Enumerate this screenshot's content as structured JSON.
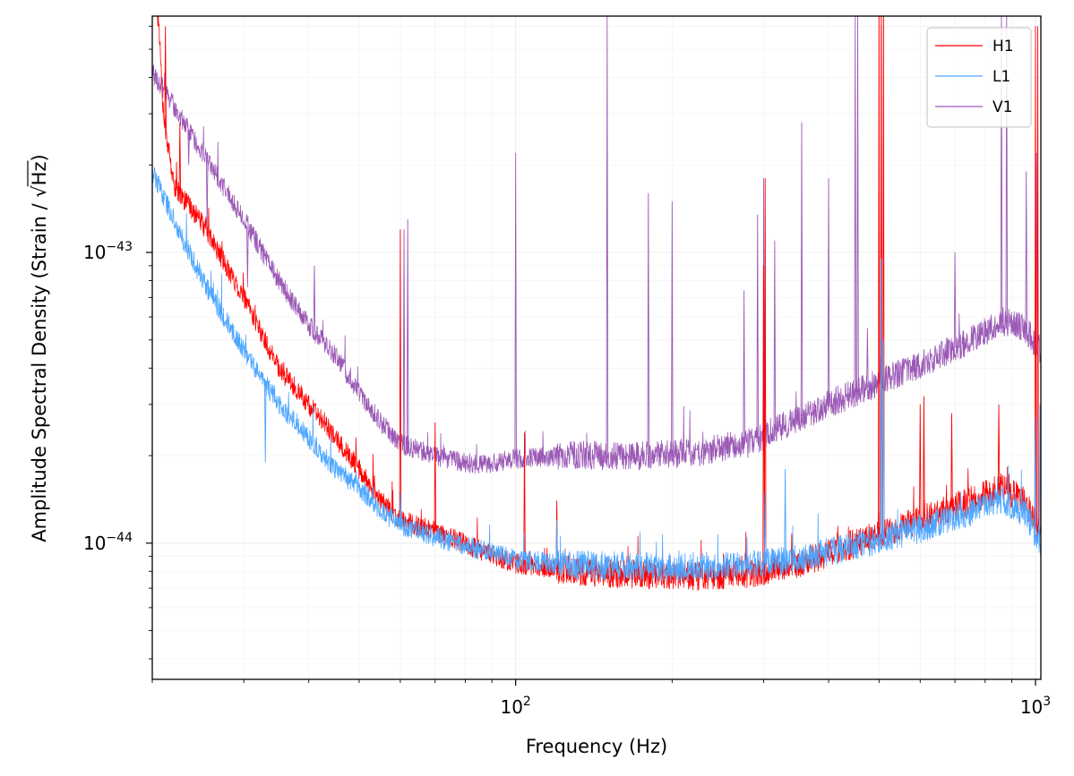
{
  "chart_data": {
    "type": "line",
    "xlabel": "Frequency (Hz)",
    "ylabel_prefix": "Amplitude Spectral Density (Strain / ",
    "ylabel_sqrt": "√",
    "ylabel_radicand": "Hz",
    "ylabel_suffix": ")",
    "x_scale": "log",
    "y_scale": "log",
    "xlim": [
      20,
      1024
    ],
    "ylim": [
      3.4e-45,
      6.5e-43
    ],
    "grid": true,
    "legend_position": "top-right",
    "x_ticks": [
      {
        "value": 100,
        "base": "10",
        "exp": "2"
      },
      {
        "value": 1000,
        "base": "10",
        "exp": "3"
      }
    ],
    "y_ticks": [
      {
        "value": 1e-44,
        "base": "10",
        "exp": "−44"
      },
      {
        "value": 1e-43,
        "base": "10",
        "exp": "−43"
      }
    ],
    "series": [
      {
        "name": "H1",
        "color": "#ff0000",
        "baseline": [
          [
            20,
            1.8e-42
          ],
          [
            21,
            3e-43
          ],
          [
            22,
            1.7e-43
          ],
          [
            25,
            1.25e-43
          ],
          [
            30,
            7e-44
          ],
          [
            35,
            4e-44
          ],
          [
            40,
            3e-44
          ],
          [
            45,
            2.3e-44
          ],
          [
            50,
            1.8e-44
          ],
          [
            55,
            1.4e-44
          ],
          [
            60,
            1.2e-44
          ],
          [
            70,
            1.1e-44
          ],
          [
            85,
            9.5e-45
          ],
          [
            100,
            8.5e-45
          ],
          [
            130,
            8e-45
          ],
          [
            170,
            7.8e-45
          ],
          [
            220,
            7.7e-45
          ],
          [
            280,
            7.8e-45
          ],
          [
            350,
            8.5e-45
          ],
          [
            450,
            1e-44
          ],
          [
            600,
            1.2e-44
          ],
          [
            750,
            1.4e-44
          ],
          [
            860,
            1.55e-44
          ],
          [
            950,
            1.4e-44
          ],
          [
            1024,
            1.1e-44
          ]
        ],
        "peaks": [
          [
            20.5,
            6e-43
          ],
          [
            21.2,
            6e-43
          ],
          [
            22.6,
            2.8e-43
          ],
          [
            60,
            1.2e-43
          ],
          [
            70,
            2.6e-44
          ],
          [
            104,
            2.4e-44
          ],
          [
            120,
            1.4e-44
          ],
          [
            300,
            9e-44
          ],
          [
            302,
            1.8e-43
          ],
          [
            500,
            9e-43
          ],
          [
            505,
            9e-43
          ],
          [
            510,
            9e-43
          ],
          [
            600,
            3e-44
          ],
          [
            610,
            3.2e-44
          ],
          [
            690,
            2.8e-44
          ],
          [
            850,
            3e-44
          ],
          [
            1000,
            6e-43
          ],
          [
            1010,
            6e-43
          ]
        ]
      },
      {
        "name": "L1",
        "color": "#4da6ff",
        "baseline": [
          [
            20,
            1.9e-43
          ],
          [
            22,
            1.3e-43
          ],
          [
            25,
            8e-44
          ],
          [
            30,
            4.6e-44
          ],
          [
            35,
            3e-44
          ],
          [
            40,
            2.3e-44
          ],
          [
            45,
            1.8e-44
          ],
          [
            50,
            1.55e-44
          ],
          [
            55,
            1.3e-44
          ],
          [
            60,
            1.15e-44
          ],
          [
            70,
            1.05e-44
          ],
          [
            85,
            9.5e-45
          ],
          [
            100,
            8.8e-45
          ],
          [
            130,
            8.4e-45
          ],
          [
            170,
            8.3e-45
          ],
          [
            220,
            8.3e-45
          ],
          [
            280,
            8.4e-45
          ],
          [
            350,
            8.8e-45
          ],
          [
            450,
            9.8e-45
          ],
          [
            600,
            1.12e-44
          ],
          [
            750,
            1.28e-44
          ],
          [
            860,
            1.4e-44
          ],
          [
            950,
            1.28e-44
          ],
          [
            1024,
            1e-44
          ]
        ],
        "peaks": [
          [
            33,
            1.9e-44
          ],
          [
            60,
            1.5e-44
          ],
          [
            120,
            1.2e-44
          ],
          [
            302,
            1.5e-44
          ],
          [
            330,
            1.8e-44
          ],
          [
            505,
            9.5e-44
          ],
          [
            510,
            5e-44
          ],
          [
            1000,
            2.7e-44
          ],
          [
            1020,
            3e-44
          ]
        ]
      },
      {
        "name": "V1",
        "color": "#9b59b6",
        "baseline": [
          [
            20,
            4.2e-43
          ],
          [
            22,
            3.2e-43
          ],
          [
            25,
            2.2e-43
          ],
          [
            30,
            1.3e-43
          ],
          [
            35,
            8e-44
          ],
          [
            40,
            5.6e-44
          ],
          [
            45,
            4.4e-44
          ],
          [
            50,
            3.3e-44
          ],
          [
            55,
            2.6e-44
          ],
          [
            60,
            2.2e-44
          ],
          [
            70,
            2e-44
          ],
          [
            85,
            1.85e-44
          ],
          [
            100,
            1.95e-44
          ],
          [
            130,
            2e-44
          ],
          [
            170,
            2e-44
          ],
          [
            220,
            2.05e-44
          ],
          [
            280,
            2.2e-44
          ],
          [
            350,
            2.7e-44
          ],
          [
            450,
            3.3e-44
          ],
          [
            600,
            4.1e-44
          ],
          [
            750,
            5e-44
          ],
          [
            860,
            5.8e-44
          ],
          [
            950,
            5.5e-44
          ],
          [
            1024,
            4.6e-44
          ]
        ],
        "peaks": [
          [
            23.5,
            2e-43
          ],
          [
            25.5,
            1.2e-43
          ],
          [
            30.5,
            7.6e-44
          ],
          [
            41,
            9e-44
          ],
          [
            61,
            1.2e-43
          ],
          [
            62,
            1.3e-43
          ],
          [
            100,
            2.2e-43
          ],
          [
            150,
            6.5e-43
          ],
          [
            180,
            1.6e-43
          ],
          [
            200,
            1.5e-43
          ],
          [
            275,
            7.4e-44
          ],
          [
            292,
            1.35e-43
          ],
          [
            300,
            1.8e-43
          ],
          [
            315,
            1.1e-43
          ],
          [
            355,
            2.8e-43
          ],
          [
            400,
            1.8e-43
          ],
          [
            450,
            6.5e-43
          ],
          [
            455,
            6.5e-43
          ],
          [
            475,
            5.5e-44
          ],
          [
            505,
            6e-43
          ],
          [
            700,
            1e-43
          ],
          [
            860,
            6.5e-43
          ],
          [
            880,
            6.5e-43
          ],
          [
            960,
            1.9e-43
          ],
          [
            1004,
            2.2e-43
          ]
        ]
      }
    ]
  }
}
